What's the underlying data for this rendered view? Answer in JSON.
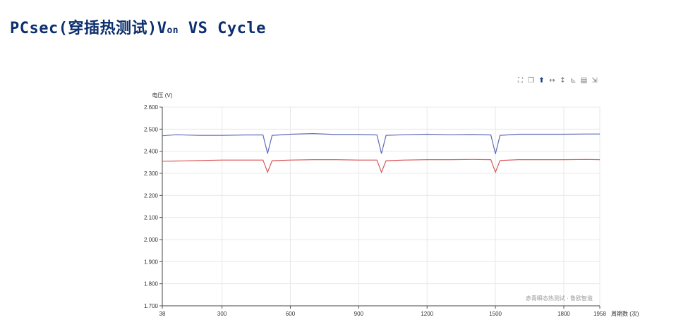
{
  "page": {
    "title_main": "PCsec(穿插热测试)V",
    "title_sub": "on",
    "title_tail": " VS Cycle"
  },
  "toolbox": [
    "zoom-icon",
    "restore-icon",
    "save-image-icon",
    "horizontal-range-icon",
    "vertical-range-icon",
    "line-chart-icon",
    "data-view-icon",
    "restore-view-icon"
  ],
  "chart_data": {
    "type": "line",
    "ylabel": "电压 (V)",
    "xlabel": "周期数 (次)",
    "watermark": "赤青瞬态热测试 · 鲁欧智造",
    "xlim": [
      38,
      1958
    ],
    "ylim": [
      1.7,
      2.6
    ],
    "x_ticks": [
      "38",
      "300",
      "600",
      "900",
      "1200",
      "1500",
      "1800",
      "1958"
    ],
    "y_ticks": [
      "1.700",
      "1.800",
      "1.900",
      "2.000",
      "2.100",
      "2.200",
      "2.300",
      "2.400",
      "2.500",
      "2.600"
    ],
    "grid": true,
    "series": [
      {
        "color": "#5f6bb8",
        "x": [
          38,
          100,
          200,
          300,
          400,
          480,
          500,
          520,
          600,
          700,
          800,
          900,
          980,
          1000,
          1020,
          1100,
          1200,
          1300,
          1400,
          1480,
          1500,
          1520,
          1600,
          1700,
          1800,
          1900,
          1958
        ],
        "values": [
          2.47,
          2.475,
          2.472,
          2.472,
          2.474,
          2.474,
          2.39,
          2.472,
          2.477,
          2.48,
          2.476,
          2.476,
          2.474,
          2.39,
          2.472,
          2.475,
          2.477,
          2.475,
          2.476,
          2.474,
          2.388,
          2.472,
          2.477,
          2.477,
          2.477,
          2.478,
          2.478
        ]
      },
      {
        "color": "#d9585a",
        "x": [
          38,
          100,
          200,
          300,
          400,
          480,
          500,
          520,
          600,
          700,
          800,
          900,
          980,
          1000,
          1020,
          1100,
          1200,
          1300,
          1400,
          1480,
          1500,
          1520,
          1600,
          1700,
          1800,
          1900,
          1958
        ],
        "values": [
          2.355,
          2.356,
          2.358,
          2.36,
          2.36,
          2.36,
          2.305,
          2.357,
          2.36,
          2.362,
          2.362,
          2.36,
          2.36,
          2.305,
          2.357,
          2.36,
          2.362,
          2.362,
          2.363,
          2.362,
          2.305,
          2.358,
          2.362,
          2.362,
          2.362,
          2.363,
          2.362
        ]
      }
    ]
  }
}
